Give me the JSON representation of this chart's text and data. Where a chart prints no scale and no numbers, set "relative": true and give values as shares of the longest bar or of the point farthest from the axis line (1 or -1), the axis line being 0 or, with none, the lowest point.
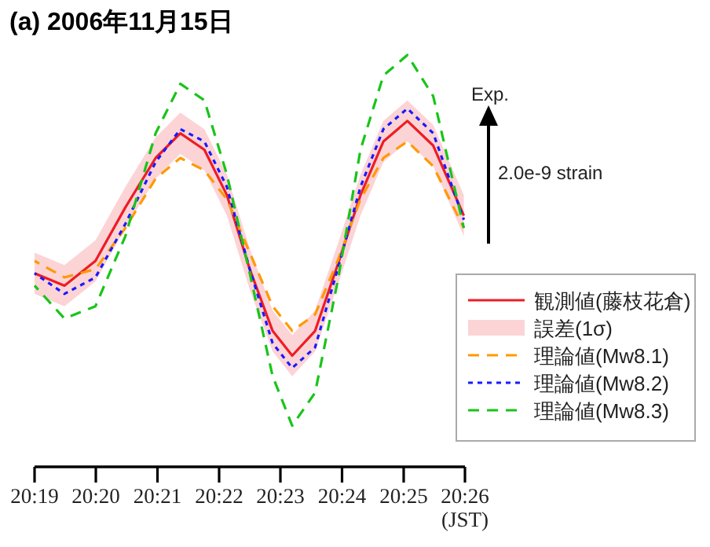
{
  "chart_data": {
    "type": "line",
    "title": "(a) 2006年11月15日",
    "xlabel": "(JST)",
    "relative": true,
    "legend": "bottom right",
    "annotations": [
      "Exp.",
      "2.0e-9 strain",
      "誤差(1σ)"
    ],
    "x": [
      20.3167,
      20.3248,
      20.3332,
      20.3413,
      20.3495,
      20.3562,
      20.3627,
      20.3688,
      20.375,
      20.3812,
      20.3865,
      20.3927,
      20.3988,
      20.405,
      20.4112,
      20.4177,
      20.4247,
      20.433
    ],
    "xlim": [
      20.3167,
      20.4333
    ],
    "xticks": [
      {
        "value": 20.3167,
        "label": "20:19"
      },
      {
        "value": 20.3333,
        "label": "20:20"
      },
      {
        "value": 20.35,
        "label": "20:21"
      },
      {
        "value": 20.3667,
        "label": "20:22"
      },
      {
        "value": 20.3833,
        "label": "20:23"
      },
      {
        "value": 20.4,
        "label": "20:24"
      },
      {
        "value": 20.4167,
        "label": "20:25"
      },
      {
        "value": 20.4333,
        "label": "20:26"
      }
    ],
    "series": [
      {
        "name": "観測値(藤枝花倉)",
        "color": "#ee1c25",
        "line_style": "solid",
        "values": [
          0.47,
          0.44,
          0.5,
          0.63,
          0.75,
          0.81,
          0.77,
          0.66,
          0.48,
          0.33,
          0.27,
          0.33,
          0.49,
          0.66,
          0.79,
          0.84,
          0.78,
          0.61
        ],
        "lower": [
          0.42,
          0.39,
          0.45,
          0.58,
          0.7,
          0.76,
          0.72,
          0.61,
          0.43,
          0.28,
          0.22,
          0.28,
          0.44,
          0.61,
          0.74,
          0.79,
          0.73,
          0.56
        ],
        "upper": [
          0.52,
          0.49,
          0.55,
          0.68,
          0.8,
          0.86,
          0.82,
          0.71,
          0.53,
          0.38,
          0.32,
          0.38,
          0.54,
          0.71,
          0.84,
          0.89,
          0.83,
          0.66
        ]
      },
      {
        "name": "理論値(Mw8.1)",
        "color": "#ff9900",
        "line_style": "dashed",
        "values": [
          0.5,
          0.46,
          0.48,
          0.58,
          0.7,
          0.75,
          0.72,
          0.65,
          0.52,
          0.39,
          0.33,
          0.37,
          0.5,
          0.65,
          0.75,
          0.79,
          0.73,
          0.58
        ]
      },
      {
        "name": "理論値(Mw8.2)",
        "color": "#1a1aff",
        "line_style": "dotted",
        "values": [
          0.47,
          0.42,
          0.46,
          0.59,
          0.74,
          0.82,
          0.79,
          0.68,
          0.48,
          0.3,
          0.24,
          0.29,
          0.48,
          0.68,
          0.82,
          0.87,
          0.81,
          0.6
        ]
      },
      {
        "name": "理論値(Mw8.3)",
        "color": "#19c419",
        "line_style": "dashed",
        "values": [
          0.44,
          0.36,
          0.39,
          0.56,
          0.81,
          0.93,
          0.89,
          0.71,
          0.47,
          0.22,
          0.1,
          0.18,
          0.45,
          0.77,
          0.95,
          1.0,
          0.9,
          0.58
        ]
      }
    ]
  }
}
